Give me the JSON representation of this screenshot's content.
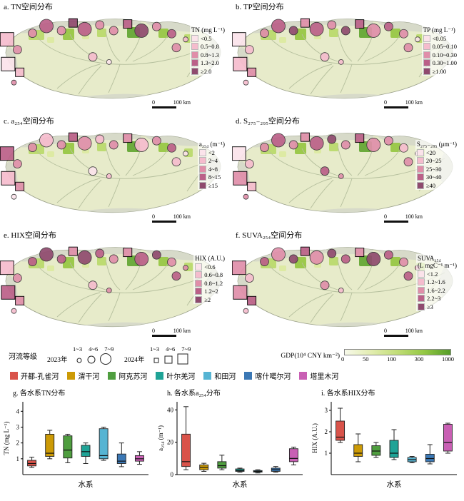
{
  "colors": {
    "class_scale": [
      "#fbe3ea",
      "#f5bccd",
      "#e08ea9",
      "#bb6088",
      "#8f4a6e"
    ],
    "map_fill": "#e7ebca",
    "map_stroke": "#9aa089",
    "mountain": "#d3d7c9",
    "river_line": "#b5bf9d",
    "gdp_colors": [
      "#f4f7e3",
      "#dcea9e",
      "#b8d968",
      "#93c53e",
      "#5ea42e"
    ]
  },
  "panels": [
    {
      "id": "a",
      "title": "a. TN空间分布",
      "legend_title": "TN (mg L⁻¹)",
      "legend_title2": "",
      "classes": [
        "<0.5",
        "0.5~0.8",
        "0.8~1.3",
        "1.3~2.0",
        "≥2.0"
      ]
    },
    {
      "id": "b",
      "title": "b. TP空间分布",
      "legend_title": "TP (mg L⁻¹)",
      "legend_title2": "",
      "classes": [
        "<0.05",
        "0.05~0.10",
        "0.10~0.30",
        "0.30~1.00",
        "≥1.00"
      ]
    },
    {
      "id": "c",
      "title": "c. a₂₅₄空间分布",
      "legend_title": "a₂₅₄ (m⁻¹)",
      "legend_title2": "",
      "classes": [
        "<2",
        "2~4",
        "4~8",
        "8~15",
        "≥15"
      ]
    },
    {
      "id": "d",
      "title": "d. S₂₇₅₋₂₉₅空间分布",
      "legend_title": "S₂₇₅₋₂₉₅ (μm⁻¹)",
      "legend_title2": "",
      "classes": [
        "<20",
        "20~25",
        "25~30",
        "30~40",
        "≥40"
      ]
    },
    {
      "id": "e",
      "title": "e. HIX空间分布",
      "legend_title": "HIX (A.U.)",
      "legend_title2": "",
      "classes": [
        "<0.6",
        "0.6~0.8",
        "0.8~1.2",
        "1.2~2",
        "≥2"
      ]
    },
    {
      "id": "f",
      "title": "f. SUVA₂₅₄空间分布",
      "legend_title": "SUVA₂₅₄",
      "legend_title2": "(L mgC⁻¹ m⁻¹)",
      "classes": [
        "<1.2",
        "1.2~1.6",
        "1.6~2.2",
        "2.2~3",
        "≥3"
      ]
    }
  ],
  "scale_bar": {
    "zero": "0",
    "label": "100 km"
  },
  "markers": {
    "points": [
      {
        "x": 0.03,
        "y": 0.3,
        "shape": "square",
        "size": 3
      },
      {
        "x": 0.075,
        "y": 0.4,
        "shape": "circle",
        "size": 2
      },
      {
        "x": 0.035,
        "y": 0.54,
        "shape": "square",
        "size": 3
      },
      {
        "x": 0.085,
        "y": 0.62,
        "shape": "square",
        "size": 2
      },
      {
        "x": 0.06,
        "y": 0.72,
        "shape": "circle",
        "size": 1
      },
      {
        "x": 0.14,
        "y": 0.24,
        "shape": "circle",
        "size": 2
      },
      {
        "x": 0.2,
        "y": 0.17,
        "shape": "circle",
        "size": 3
      },
      {
        "x": 0.265,
        "y": 0.215,
        "shape": "circle",
        "size": 2
      },
      {
        "x": 0.315,
        "y": 0.14,
        "shape": "square",
        "size": 2
      },
      {
        "x": 0.365,
        "y": 0.2,
        "shape": "circle",
        "size": 3
      },
      {
        "x": 0.43,
        "y": 0.16,
        "shape": "circle",
        "size": 2
      },
      {
        "x": 0.49,
        "y": 0.215,
        "shape": "circle",
        "size": 2
      },
      {
        "x": 0.55,
        "y": 0.15,
        "shape": "square",
        "size": 2
      },
      {
        "x": 0.61,
        "y": 0.215,
        "shape": "circle",
        "size": 3
      },
      {
        "x": 0.675,
        "y": 0.175,
        "shape": "circle",
        "size": 2
      },
      {
        "x": 0.74,
        "y": 0.245,
        "shape": "circle",
        "size": 2
      },
      {
        "x": 0.4,
        "y": 0.47,
        "shape": "circle",
        "size": 2
      },
      {
        "x": 0.47,
        "y": 0.52,
        "shape": "circle",
        "size": 1
      },
      {
        "x": 0.76,
        "y": 0.38,
        "shape": "circle",
        "size": 2
      },
      {
        "x": 0.8,
        "y": 0.3,
        "shape": "circle",
        "size": 1
      }
    ],
    "classes_by_panel": {
      "a": [
        1,
        2,
        0,
        1,
        2,
        2,
        3,
        2,
        4,
        3,
        2,
        2,
        3,
        4,
        2,
        3,
        1,
        0,
        2,
        1
      ],
      "b": [
        0,
        1,
        1,
        2,
        1,
        2,
        3,
        4,
        2,
        3,
        2,
        4,
        3,
        2,
        3,
        2,
        1,
        1,
        2,
        0
      ],
      "c": [
        3,
        2,
        1,
        2,
        0,
        2,
        1,
        2,
        3,
        2,
        1,
        2,
        2,
        1,
        2,
        3,
        0,
        1,
        1,
        0
      ],
      "d": [
        0,
        1,
        2,
        1,
        2,
        2,
        3,
        2,
        2,
        3,
        4,
        2,
        3,
        2,
        2,
        1,
        3,
        2,
        2,
        1
      ],
      "e": [
        1,
        2,
        3,
        2,
        1,
        3,
        4,
        3,
        2,
        4,
        3,
        2,
        2,
        3,
        4,
        2,
        1,
        2,
        3,
        2
      ],
      "f": [
        2,
        1,
        2,
        3,
        1,
        3,
        2,
        4,
        3,
        2,
        4,
        3,
        2,
        4,
        3,
        2,
        2,
        1,
        3,
        2
      ]
    }
  },
  "river_grade": {
    "label": "河流等级",
    "sizes": [
      "1~3",
      "4~6",
      "7~9"
    ],
    "year_circles": "2023年",
    "year_squares": "2024年"
  },
  "gdp_legend": {
    "title": "GDP(10⁴ CNY km⁻²)",
    "ticks": [
      "0",
      "50",
      "100",
      "300",
      "1000"
    ]
  },
  "rivers": [
    {
      "name": "开都-孔雀河",
      "color": "#d9534a"
    },
    {
      "name": "渭干河",
      "color": "#cc9a06"
    },
    {
      "name": "阿克苏河",
      "color": "#4f9e3f"
    },
    {
      "name": "叶尔羌河",
      "color": "#1fa396"
    },
    {
      "name": "和田河",
      "color": "#56b4d3"
    },
    {
      "name": "喀什噶尔河",
      "color": "#3b78b5"
    },
    {
      "name": "塔里木河",
      "color": "#c95fb4"
    }
  ],
  "chart_data": [
    {
      "type": "box",
      "title": "g. 各水系TN分布",
      "ylabel": "TN (mg L⁻¹)",
      "xlabel": "水系",
      "ylim": [
        0,
        4.6
      ],
      "yticks": [
        1,
        2,
        3,
        4
      ],
      "categories": [
        "开都-孔雀河",
        "渭干河",
        "阿克苏河",
        "叶尔羌河",
        "和田河",
        "喀什噶尔河",
        "塔里木河"
      ],
      "boxes": [
        {
          "river": "开都-孔雀河",
          "low": 0.45,
          "q1": 0.55,
          "median": 0.7,
          "q3": 0.9,
          "high": 1.1
        },
        {
          "river": "渭干河",
          "low": 1.0,
          "q1": 1.15,
          "median": 1.35,
          "q3": 2.55,
          "high": 2.8
        },
        {
          "river": "阿克苏河",
          "low": 0.75,
          "q1": 1.05,
          "median": 1.55,
          "q3": 2.45,
          "high": 2.55
        },
        {
          "river": "叶尔羌河",
          "low": 0.7,
          "q1": 1.15,
          "median": 1.45,
          "q3": 1.85,
          "high": 2.0
        },
        {
          "river": "和田河",
          "low": 0.9,
          "q1": 1.0,
          "median": 1.2,
          "q3": 2.9,
          "high": 3.0
        },
        {
          "river": "喀什噶尔河",
          "low": 0.5,
          "q1": 0.7,
          "median": 0.85,
          "q3": 1.3,
          "high": 2.0
        },
        {
          "river": "塔里木河",
          "low": 0.65,
          "q1": 0.85,
          "median": 1.0,
          "q3": 1.2,
          "high": 1.45
        }
      ]
    },
    {
      "type": "box",
      "title": "h. 各水系a₂₅₄分布",
      "ylabel": "a₂₅₄ (m⁻¹)",
      "xlabel": "水系",
      "ylim": [
        0,
        45
      ],
      "yticks": [
        0,
        20,
        40
      ],
      "categories": [
        "开都-孔雀河",
        "渭干河",
        "阿克苏河",
        "叶尔羌河",
        "和田河",
        "喀什噶尔河",
        "塔里木河"
      ],
      "boxes": [
        {
          "river": "开都-孔雀河",
          "low": 3.0,
          "q1": 5.0,
          "median": 8.0,
          "q3": 25.0,
          "high": 42.0
        },
        {
          "river": "渭干河",
          "low": 2.0,
          "q1": 3.0,
          "median": 4.5,
          "q3": 6.0,
          "high": 7.0
        },
        {
          "river": "阿克苏河",
          "low": 3.0,
          "q1": 4.0,
          "median": 5.5,
          "q3": 8.0,
          "high": 12.0
        },
        {
          "river": "叶尔羌河",
          "low": 1.5,
          "q1": 2.0,
          "median": 2.5,
          "q3": 3.5,
          "high": 4.0
        },
        {
          "river": "和田河",
          "low": 1.0,
          "q1": 1.5,
          "median": 2.0,
          "q3": 2.5,
          "high": 3.0
        },
        {
          "river": "喀什噶尔河",
          "low": 1.5,
          "q1": 2.0,
          "median": 3.0,
          "q3": 4.0,
          "high": 5.0
        },
        {
          "river": "塔里木河",
          "low": 6.0,
          "q1": 8.0,
          "median": 10.0,
          "q3": 16.0,
          "high": 17.0
        }
      ]
    },
    {
      "type": "box",
      "title": "i. 各水系HIX分布",
      "ylabel": "HIX (A.U.)",
      "xlabel": "水系",
      "ylim": [
        0,
        3.4
      ],
      "yticks": [
        1,
        2,
        3
      ],
      "categories": [
        "开都-孔雀河",
        "渭干河",
        "阿克苏河",
        "叶尔羌河",
        "和田河",
        "喀什噶尔河",
        "塔里木河"
      ],
      "boxes": [
        {
          "river": "开都-孔雀河",
          "low": 1.5,
          "q1": 1.6,
          "median": 1.75,
          "q3": 2.5,
          "high": 3.1
        },
        {
          "river": "渭干河",
          "low": 0.6,
          "q1": 0.85,
          "median": 1.0,
          "q3": 1.4,
          "high": 1.9
        },
        {
          "river": "阿克苏河",
          "low": 0.8,
          "q1": 0.9,
          "median": 1.1,
          "q3": 1.35,
          "high": 1.5
        },
        {
          "river": "叶尔羌河",
          "low": 0.7,
          "q1": 0.8,
          "median": 1.0,
          "q3": 1.6,
          "high": 2.1
        },
        {
          "river": "和田河",
          "low": 0.55,
          "q1": 0.6,
          "median": 0.7,
          "q3": 0.8,
          "high": 0.85
        },
        {
          "river": "喀什噶尔河",
          "low": 0.5,
          "q1": 0.6,
          "median": 0.75,
          "q3": 0.95,
          "high": 1.4
        },
        {
          "river": "塔里木河",
          "low": 1.0,
          "q1": 1.1,
          "median": 1.5,
          "q3": 2.35,
          "high": 2.4
        }
      ]
    }
  ]
}
